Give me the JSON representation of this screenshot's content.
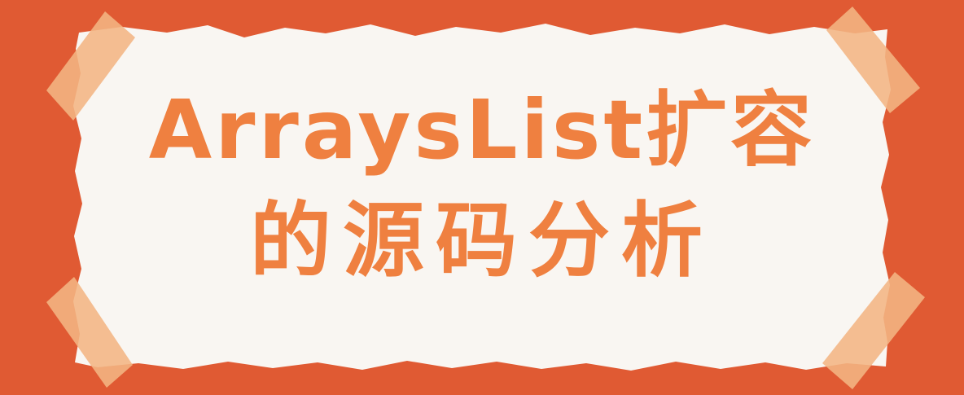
{
  "title": {
    "line1": "ArraysList扩容",
    "line2": "的源码分析"
  },
  "colors": {
    "background": "#e05a33",
    "paper": "#f9f6f2",
    "text": "#ef8040",
    "tape": "#f3b583"
  }
}
